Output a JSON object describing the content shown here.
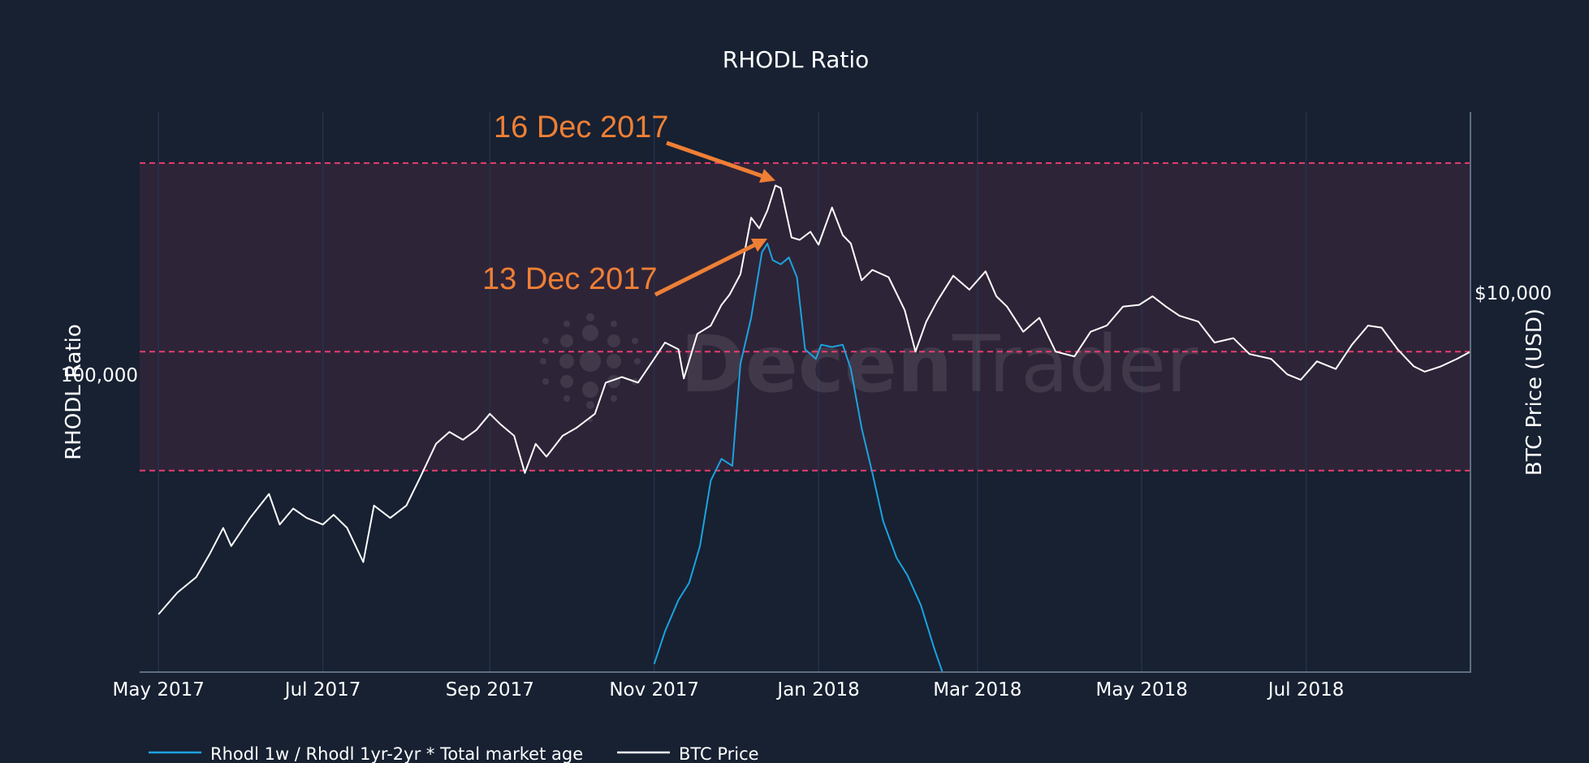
{
  "chart_data": {
    "type": "line",
    "title": "RHODL Ratio",
    "ylabel_left": "RHODL Ratio",
    "ylabel_right": "BTC Price (USD)",
    "y_left_ticks": [
      {
        "value": 100000,
        "label": "100,000"
      }
    ],
    "y_right_ticks": [
      {
        "value": 10000,
        "label": "$10,000"
      }
    ],
    "y_right_scale": "log",
    "y_right_range": [
      1000,
      30000
    ],
    "x_range": [
      "2017-04-24",
      "2018-08-31"
    ],
    "x_ticks": [
      {
        "date": "2017-05-01",
        "label": "May 2017"
      },
      {
        "date": "2017-07-01",
        "label": "Jul 2017"
      },
      {
        "date": "2017-09-01",
        "label": "Sep 2017"
      },
      {
        "date": "2017-11-01",
        "label": "Nov 2017"
      },
      {
        "date": "2018-01-01",
        "label": "Jan 2018"
      },
      {
        "date": "2018-03-01",
        "label": "Mar 2018"
      },
      {
        "date": "2018-05-01",
        "label": "May 2018"
      },
      {
        "date": "2018-07-01",
        "label": "Jul 2018"
      }
    ],
    "grid": true,
    "legend_position": "bottom-left",
    "bands": [
      {
        "price_low": 3400,
        "price_high": 22000,
        "color": "#2e2438"
      }
    ],
    "threshold_lines": [
      {
        "price": 22000,
        "color": "#e63e6d"
      },
      {
        "price": 7000,
        "color": "#e63e6d"
      },
      {
        "price": 3400,
        "color": "#e63e6d"
      }
    ],
    "series": [
      {
        "name": "Rhodl 1w / Rhodl 1yr-2yr * Total market age",
        "color": "#1ba3de",
        "points": [
          [
            "2017-11-01",
            1050
          ],
          [
            "2017-11-05",
            1280
          ],
          [
            "2017-11-10",
            1550
          ],
          [
            "2017-11-14",
            1720
          ],
          [
            "2017-11-18",
            2150
          ],
          [
            "2017-11-22",
            3200
          ],
          [
            "2017-11-26",
            3650
          ],
          [
            "2017-11-30",
            3500
          ],
          [
            "2017-12-03",
            6500
          ],
          [
            "2017-12-07",
            8600
          ],
          [
            "2017-12-11",
            12800
          ],
          [
            "2017-12-13",
            13500
          ],
          [
            "2017-12-15",
            12200
          ],
          [
            "2017-12-18",
            11900
          ],
          [
            "2017-12-21",
            12400
          ],
          [
            "2017-12-24",
            11000
          ],
          [
            "2017-12-27",
            7100
          ],
          [
            "2017-12-31",
            6700
          ],
          [
            "2018-01-02",
            7300
          ],
          [
            "2018-01-06",
            7200
          ],
          [
            "2018-01-10",
            7300
          ],
          [
            "2018-01-13",
            6300
          ],
          [
            "2018-01-17",
            4400
          ],
          [
            "2018-01-21",
            3350
          ],
          [
            "2018-01-25",
            2500
          ],
          [
            "2018-01-30",
            2000
          ],
          [
            "2018-02-03",
            1800
          ],
          [
            "2018-02-08",
            1500
          ],
          [
            "2018-02-13",
            1150
          ],
          [
            "2018-02-16",
            1000
          ]
        ]
      },
      {
        "name": "BTC Price",
        "color": "#ffffff",
        "points": [
          [
            "2017-05-01",
            1420
          ],
          [
            "2017-05-08",
            1620
          ],
          [
            "2017-05-15",
            1780
          ],
          [
            "2017-05-20",
            2050
          ],
          [
            "2017-05-25",
            2400
          ],
          [
            "2017-05-28",
            2150
          ],
          [
            "2017-06-04",
            2550
          ],
          [
            "2017-06-11",
            2950
          ],
          [
            "2017-06-15",
            2450
          ],
          [
            "2017-06-20",
            2700
          ],
          [
            "2017-06-25",
            2550
          ],
          [
            "2017-07-01",
            2450
          ],
          [
            "2017-07-05",
            2600
          ],
          [
            "2017-07-10",
            2400
          ],
          [
            "2017-07-16",
            1950
          ],
          [
            "2017-07-20",
            2750
          ],
          [
            "2017-07-26",
            2550
          ],
          [
            "2017-08-01",
            2750
          ],
          [
            "2017-08-06",
            3250
          ],
          [
            "2017-08-12",
            4000
          ],
          [
            "2017-08-17",
            4300
          ],
          [
            "2017-08-22",
            4100
          ],
          [
            "2017-08-27",
            4350
          ],
          [
            "2017-09-01",
            4800
          ],
          [
            "2017-09-05",
            4500
          ],
          [
            "2017-09-10",
            4200
          ],
          [
            "2017-09-14",
            3350
          ],
          [
            "2017-09-18",
            4000
          ],
          [
            "2017-09-22",
            3700
          ],
          [
            "2017-09-28",
            4200
          ],
          [
            "2017-10-03",
            4400
          ],
          [
            "2017-10-10",
            4800
          ],
          [
            "2017-10-14",
            5800
          ],
          [
            "2017-10-20",
            6000
          ],
          [
            "2017-10-26",
            5800
          ],
          [
            "2017-11-01",
            6700
          ],
          [
            "2017-11-05",
            7400
          ],
          [
            "2017-11-10",
            7100
          ],
          [
            "2017-11-12",
            5950
          ],
          [
            "2017-11-17",
            7800
          ],
          [
            "2017-11-22",
            8200
          ],
          [
            "2017-11-26",
            9300
          ],
          [
            "2017-11-29",
            9900
          ],
          [
            "2017-12-03",
            11200
          ],
          [
            "2017-12-07",
            15800
          ],
          [
            "2017-12-10",
            14800
          ],
          [
            "2017-12-13",
            16500
          ],
          [
            "2017-12-16",
            19200
          ],
          [
            "2017-12-18",
            18900
          ],
          [
            "2017-12-22",
            14000
          ],
          [
            "2017-12-25",
            13800
          ],
          [
            "2017-12-29",
            14500
          ],
          [
            "2018-01-01",
            13400
          ],
          [
            "2018-01-06",
            16800
          ],
          [
            "2018-01-10",
            14200
          ],
          [
            "2018-01-13",
            13500
          ],
          [
            "2018-01-17",
            10800
          ],
          [
            "2018-01-21",
            11500
          ],
          [
            "2018-01-27",
            11000
          ],
          [
            "2018-02-02",
            9000
          ],
          [
            "2018-02-06",
            7000
          ],
          [
            "2018-02-10",
            8400
          ],
          [
            "2018-02-14",
            9500
          ],
          [
            "2018-02-20",
            11100
          ],
          [
            "2018-02-26",
            10200
          ],
          [
            "2018-03-04",
            11400
          ],
          [
            "2018-03-08",
            9800
          ],
          [
            "2018-03-12",
            9200
          ],
          [
            "2018-03-18",
            7900
          ],
          [
            "2018-03-24",
            8600
          ],
          [
            "2018-03-30",
            7000
          ],
          [
            "2018-04-06",
            6800
          ],
          [
            "2018-04-12",
            7900
          ],
          [
            "2018-04-18",
            8200
          ],
          [
            "2018-04-24",
            9200
          ],
          [
            "2018-04-30",
            9300
          ],
          [
            "2018-05-05",
            9800
          ],
          [
            "2018-05-10",
            9200
          ],
          [
            "2018-05-15",
            8700
          ],
          [
            "2018-05-22",
            8400
          ],
          [
            "2018-05-28",
            7400
          ],
          [
            "2018-06-04",
            7600
          ],
          [
            "2018-06-10",
            6900
          ],
          [
            "2018-06-18",
            6700
          ],
          [
            "2018-06-24",
            6100
          ],
          [
            "2018-06-29",
            5900
          ],
          [
            "2018-07-05",
            6600
          ],
          [
            "2018-07-12",
            6300
          ],
          [
            "2018-07-18",
            7300
          ],
          [
            "2018-07-24",
            8200
          ],
          [
            "2018-07-29",
            8100
          ],
          [
            "2018-08-04",
            7100
          ],
          [
            "2018-08-10",
            6400
          ],
          [
            "2018-08-14",
            6200
          ],
          [
            "2018-08-20",
            6400
          ],
          [
            "2018-08-26",
            6700
          ],
          [
            "2018-08-31",
            7000
          ]
        ]
      }
    ],
    "annotations": [
      {
        "text": "16 Dec 2017",
        "color": "#ef7f35",
        "points_to": "2017-12-16",
        "series": "BTC Price"
      },
      {
        "text": "13 Dec 2017",
        "color": "#ef7f35",
        "points_to": "2017-12-13",
        "series": "Rhodl 1w / Rhodl 1yr-2yr * Total market age"
      }
    ],
    "watermark": {
      "text_bold": "Decen",
      "text_light": "Trader"
    }
  }
}
